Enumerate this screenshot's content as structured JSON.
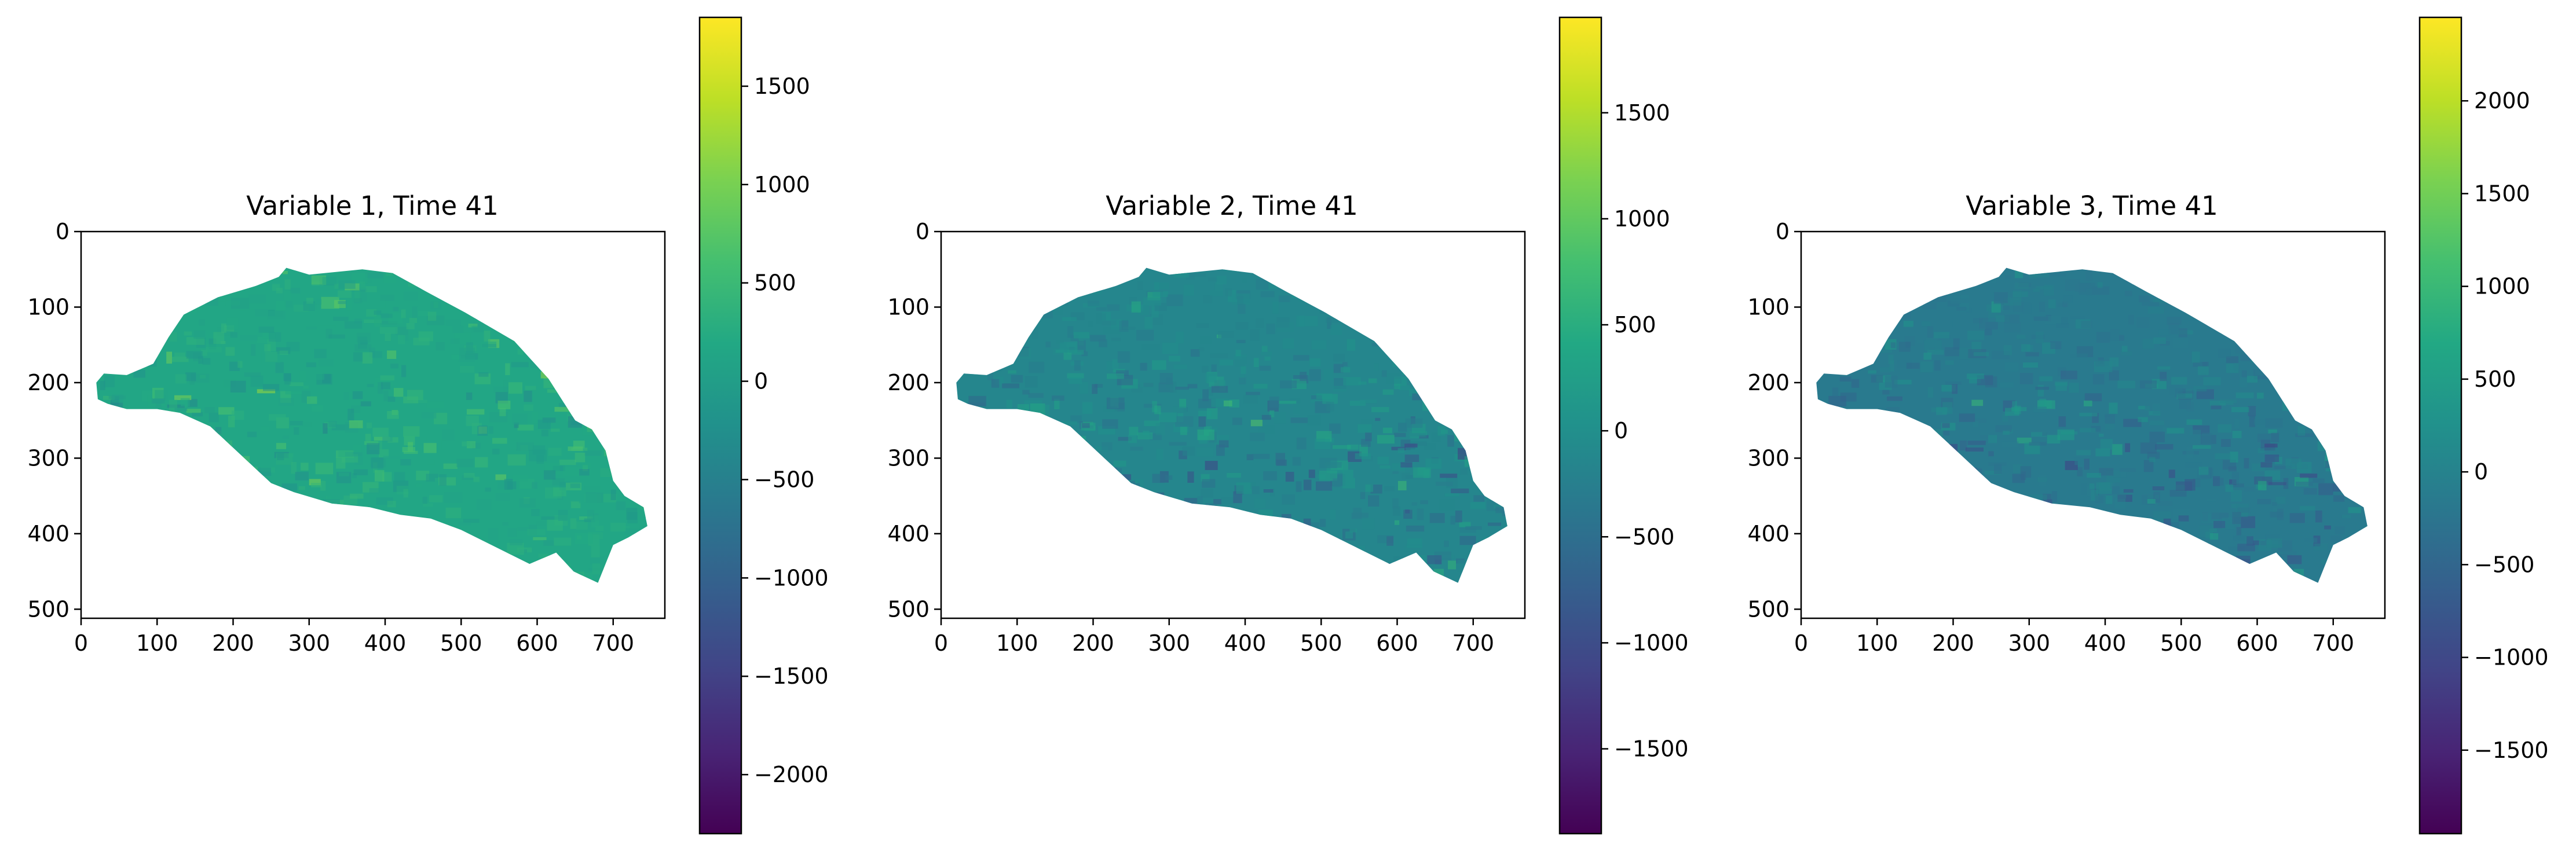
{
  "chart_data": [
    {
      "type": "heatmap",
      "title": "Variable 1, Time 41",
      "xlabel": "",
      "ylabel": "",
      "xlim": [
        0,
        768
      ],
      "ylim": [
        512,
        0
      ],
      "x_ticks": [
        0,
        100,
        200,
        300,
        400,
        500,
        600,
        700
      ],
      "y_ticks": [
        0,
        100,
        200,
        300,
        400,
        500
      ],
      "x_tick_labels": [
        "0",
        "100",
        "200",
        "300",
        "400",
        "500",
        "600",
        "700"
      ],
      "y_tick_labels": [
        "0",
        "100",
        "200",
        "300",
        "400",
        "500"
      ],
      "colormap": "viridis",
      "colorbar": {
        "range": [
          -2300,
          1850
        ],
        "ticks": [
          1500,
          1000,
          500,
          0,
          -500,
          -1000,
          -1500,
          -2000
        ],
        "tick_labels": [
          "1500",
          "1000",
          "500",
          "0",
          "−500",
          "−1000",
          "−1500",
          "−2000"
        ]
      },
      "dominant_value": 150,
      "land_outline": [
        [
          20,
          200
        ],
        [
          30,
          188
        ],
        [
          60,
          190
        ],
        [
          95,
          175
        ],
        [
          115,
          140
        ],
        [
          135,
          110
        ],
        [
          180,
          87
        ],
        [
          230,
          72
        ],
        [
          260,
          60
        ],
        [
          270,
          48
        ],
        [
          300,
          57
        ],
        [
          370,
          50
        ],
        [
          410,
          55
        ],
        [
          455,
          80
        ],
        [
          505,
          107
        ],
        [
          570,
          145
        ],
        [
          615,
          195
        ],
        [
          650,
          250
        ],
        [
          672,
          262
        ],
        [
          690,
          290
        ],
        [
          700,
          330
        ],
        [
          715,
          350
        ],
        [
          740,
          365
        ],
        [
          745,
          390
        ],
        [
          720,
          405
        ],
        [
          700,
          415
        ],
        [
          690,
          440
        ],
        [
          680,
          465
        ],
        [
          648,
          450
        ],
        [
          625,
          425
        ],
        [
          590,
          440
        ],
        [
          550,
          420
        ],
        [
          500,
          395
        ],
        [
          460,
          380
        ],
        [
          420,
          375
        ],
        [
          380,
          365
        ],
        [
          330,
          360
        ],
        [
          280,
          345
        ],
        [
          250,
          333
        ],
        [
          220,
          305
        ],
        [
          170,
          258
        ],
        [
          130,
          240
        ],
        [
          100,
          235
        ],
        [
          60,
          235
        ],
        [
          35,
          228
        ],
        [
          22,
          222
        ]
      ]
    },
    {
      "type": "heatmap",
      "title": "Variable 2, Time 41",
      "xlabel": "",
      "ylabel": "",
      "xlim": [
        0,
        768
      ],
      "ylim": [
        512,
        0
      ],
      "x_ticks": [
        0,
        100,
        200,
        300,
        400,
        500,
        600,
        700
      ],
      "y_ticks": [
        0,
        100,
        200,
        300,
        400,
        500
      ],
      "x_tick_labels": [
        "0",
        "100",
        "200",
        "300",
        "400",
        "500",
        "600",
        "700"
      ],
      "y_tick_labels": [
        "0",
        "100",
        "200",
        "300",
        "400",
        "500"
      ],
      "colormap": "viridis",
      "colorbar": {
        "range": [
          -1900,
          1950
        ],
        "ticks": [
          1500,
          1000,
          500,
          0,
          -500,
          -1000,
          -1500
        ],
        "tick_labels": [
          "1500",
          "1000",
          "500",
          "0",
          "−500",
          "−1000",
          "−1500"
        ]
      },
      "dominant_value": -150,
      "land_outline": [
        [
          20,
          200
        ],
        [
          30,
          188
        ],
        [
          60,
          190
        ],
        [
          95,
          175
        ],
        [
          115,
          140
        ],
        [
          135,
          110
        ],
        [
          180,
          87
        ],
        [
          230,
          72
        ],
        [
          260,
          60
        ],
        [
          270,
          48
        ],
        [
          300,
          57
        ],
        [
          370,
          50
        ],
        [
          410,
          55
        ],
        [
          455,
          80
        ],
        [
          505,
          107
        ],
        [
          570,
          145
        ],
        [
          615,
          195
        ],
        [
          650,
          250
        ],
        [
          672,
          262
        ],
        [
          690,
          290
        ],
        [
          700,
          330
        ],
        [
          715,
          350
        ],
        [
          740,
          365
        ],
        [
          745,
          390
        ],
        [
          720,
          405
        ],
        [
          700,
          415
        ],
        [
          690,
          440
        ],
        [
          680,
          465
        ],
        [
          648,
          450
        ],
        [
          625,
          425
        ],
        [
          590,
          440
        ],
        [
          550,
          420
        ],
        [
          500,
          395
        ],
        [
          460,
          380
        ],
        [
          420,
          375
        ],
        [
          380,
          365
        ],
        [
          330,
          360
        ],
        [
          280,
          345
        ],
        [
          250,
          333
        ],
        [
          220,
          305
        ],
        [
          170,
          258
        ],
        [
          130,
          240
        ],
        [
          100,
          235
        ],
        [
          60,
          235
        ],
        [
          35,
          228
        ],
        [
          22,
          222
        ]
      ]
    },
    {
      "type": "heatmap",
      "title": "Variable 3, Time 41",
      "xlabel": "",
      "ylabel": "",
      "xlim": [
        0,
        768
      ],
      "ylim": [
        512,
        0
      ],
      "x_ticks": [
        0,
        100,
        200,
        300,
        400,
        500,
        600,
        700
      ],
      "y_ticks": [
        0,
        100,
        200,
        300,
        400,
        500
      ],
      "x_tick_labels": [
        "0",
        "100",
        "200",
        "300",
        "400",
        "500",
        "600",
        "700"
      ],
      "y_tick_labels": [
        "0",
        "100",
        "200",
        "300",
        "400",
        "500"
      ],
      "colormap": "viridis",
      "colorbar": {
        "range": [
          -1950,
          2450
        ],
        "ticks": [
          2000,
          1500,
          1000,
          500,
          0,
          -500,
          -1000,
          -1500
        ],
        "tick_labels": [
          "2000",
          "1500",
          "1000",
          "500",
          "0",
          "−500",
          "−1000",
          "−1500"
        ]
      },
      "dominant_value": -150,
      "land_outline": [
        [
          20,
          200
        ],
        [
          30,
          188
        ],
        [
          60,
          190
        ],
        [
          95,
          175
        ],
        [
          115,
          140
        ],
        [
          135,
          110
        ],
        [
          180,
          87
        ],
        [
          230,
          72
        ],
        [
          260,
          60
        ],
        [
          270,
          48
        ],
        [
          300,
          57
        ],
        [
          370,
          50
        ],
        [
          410,
          55
        ],
        [
          455,
          80
        ],
        [
          505,
          107
        ],
        [
          570,
          145
        ],
        [
          615,
          195
        ],
        [
          650,
          250
        ],
        [
          672,
          262
        ],
        [
          690,
          290
        ],
        [
          700,
          330
        ],
        [
          715,
          350
        ],
        [
          740,
          365
        ],
        [
          745,
          390
        ],
        [
          720,
          405
        ],
        [
          700,
          415
        ],
        [
          690,
          440
        ],
        [
          680,
          465
        ],
        [
          648,
          450
        ],
        [
          625,
          425
        ],
        [
          590,
          440
        ],
        [
          550,
          420
        ],
        [
          500,
          395
        ],
        [
          460,
          380
        ],
        [
          420,
          375
        ],
        [
          380,
          365
        ],
        [
          330,
          360
        ],
        [
          280,
          345
        ],
        [
          250,
          333
        ],
        [
          220,
          305
        ],
        [
          170,
          258
        ],
        [
          130,
          240
        ],
        [
          100,
          235
        ],
        [
          60,
          235
        ],
        [
          35,
          228
        ],
        [
          22,
          222
        ]
      ]
    }
  ]
}
